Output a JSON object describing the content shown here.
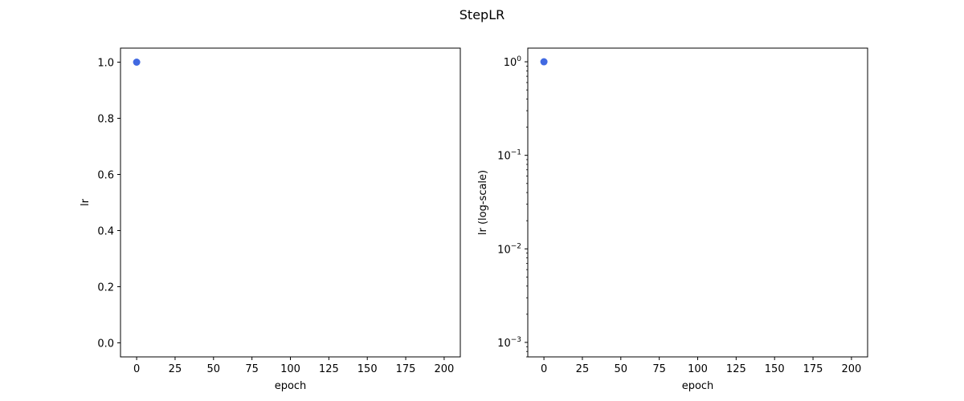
{
  "figure": {
    "suptitle": "StepLR"
  },
  "chart_data": [
    {
      "type": "scatter",
      "xlabel": "epoch",
      "ylabel": "lr",
      "yscale": "linear",
      "xlim": [
        -10.5,
        210.5
      ],
      "ylim": [
        -0.05,
        1.05
      ],
      "xticks": [
        0,
        25,
        50,
        75,
        100,
        125,
        150,
        175,
        200
      ],
      "xtick_labels": [
        "0",
        "25",
        "50",
        "75",
        "100",
        "125",
        "150",
        "175",
        "200"
      ],
      "yticks": [
        0.0,
        0.2,
        0.4,
        0.6,
        0.8,
        1.0
      ],
      "ytick_labels": [
        "0.0",
        "0.2",
        "0.4",
        "0.6",
        "0.8",
        "1.0"
      ],
      "grid": false,
      "points": [
        {
          "x": 0,
          "y": 1.0
        }
      ],
      "marker_color": "#4169e1"
    },
    {
      "type": "scatter",
      "xlabel": "epoch",
      "ylabel": "lr (log-scale)",
      "yscale": "log",
      "xlim": [
        -10.5,
        210.5
      ],
      "ylim": [
        0.0007,
        1.4
      ],
      "xticks": [
        0,
        25,
        50,
        75,
        100,
        125,
        150,
        175,
        200
      ],
      "xtick_labels": [
        "0",
        "25",
        "50",
        "75",
        "100",
        "125",
        "150",
        "175",
        "200"
      ],
      "yticks": [
        0.001,
        0.01,
        0.1,
        1
      ],
      "ytick_exponents": [
        "−3",
        "−2",
        "−1",
        "0"
      ],
      "ytick_base": "10",
      "grid": false,
      "points": [
        {
          "x": 0,
          "y": 1.0
        }
      ],
      "marker_color": "#4169e1"
    }
  ]
}
